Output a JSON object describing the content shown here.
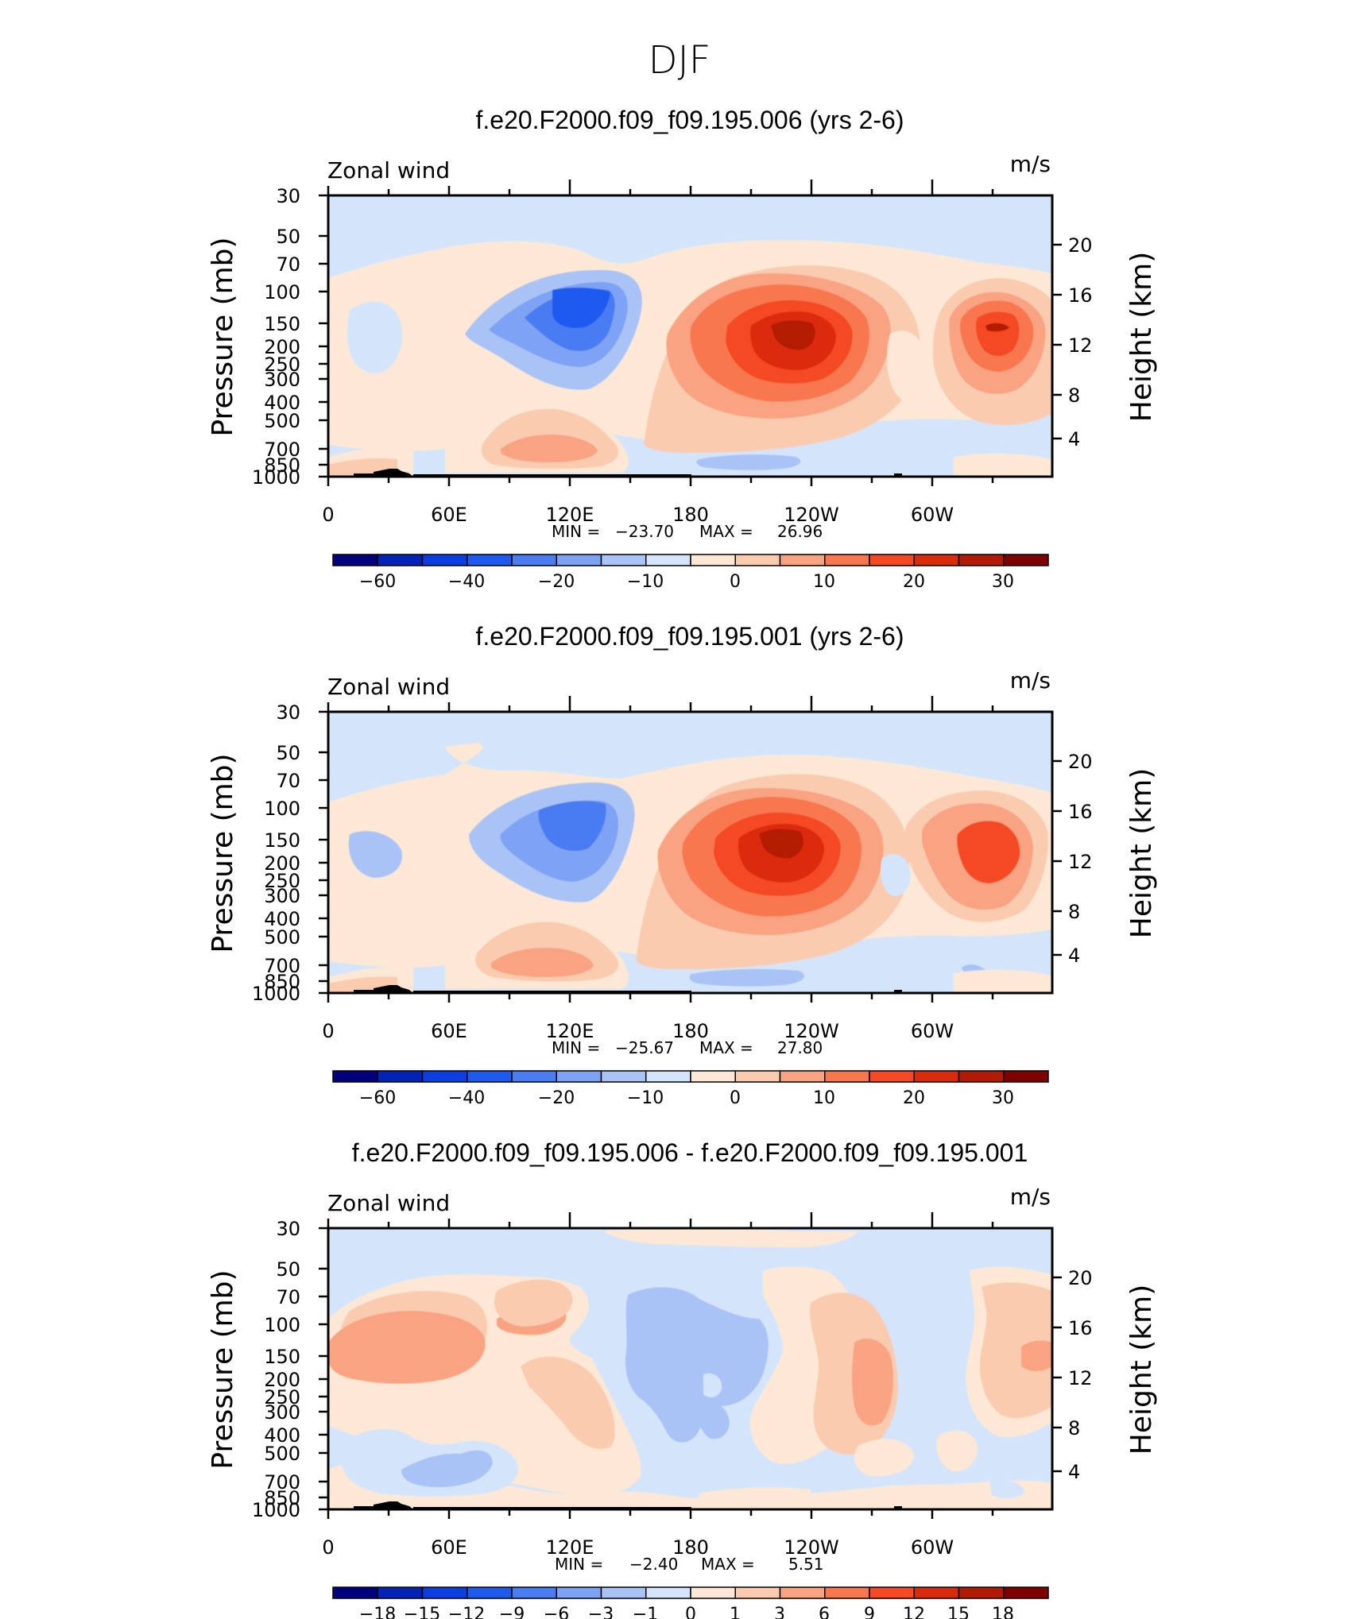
{
  "page_title": "DJF",
  "chart_data": [
    {
      "type": "heatmap",
      "title": "f.e20.F2000.f09_f09.195.006 (yrs 2-6)",
      "left_label": "Zonal wind",
      "units": "m/s",
      "ylabel": "Pressure (mb)",
      "ylabel_right": "Height (km)",
      "x_ticks": [
        "0",
        "60E",
        "120E",
        "180",
        "120W",
        "60W"
      ],
      "y_ticks": [
        "30",
        "50",
        "70",
        "100",
        "150",
        "200",
        "250",
        "300",
        "400",
        "500",
        "700",
        "850",
        "1000"
      ],
      "y_right_ticks": [
        "20",
        "16",
        "12",
        "8",
        "4"
      ],
      "min_label": "MIN =",
      "min_value": "−23.70",
      "max_label": "MAX =",
      "max_value": "26.96",
      "colorbar_labels": [
        "−60",
        "−40",
        "−20",
        "−10",
        "0",
        "10",
        "20",
        "30"
      ],
      "xlim": [
        0,
        360
      ],
      "ylim": [
        1000,
        30
      ],
      "features": [
        {
          "kind": "jet-core",
          "lon": 120,
          "p": 140,
          "value": -23.7
        },
        {
          "kind": "jet-core",
          "lon": 230,
          "p": 180,
          "value": 26.96
        },
        {
          "kind": "jet-core",
          "lon": 330,
          "p": 160,
          "value": 20
        }
      ]
    },
    {
      "type": "heatmap",
      "title": "f.e20.F2000.f09_f09.195.001 (yrs 2-6)",
      "left_label": "Zonal wind",
      "units": "m/s",
      "ylabel": "Pressure (mb)",
      "ylabel_right": "Height (km)",
      "x_ticks": [
        "0",
        "60E",
        "120E",
        "180",
        "120W",
        "60W"
      ],
      "y_ticks": [
        "30",
        "50",
        "70",
        "100",
        "150",
        "200",
        "250",
        "300",
        "400",
        "500",
        "700",
        "850",
        "1000"
      ],
      "y_right_ticks": [
        "20",
        "16",
        "12",
        "8",
        "4"
      ],
      "min_label": "MIN =",
      "min_value": "−25.67",
      "max_label": "MAX =",
      "max_value": "27.80",
      "colorbar_labels": [
        "−60",
        "−40",
        "−20",
        "−10",
        "0",
        "10",
        "20",
        "30"
      ],
      "xlim": [
        0,
        360
      ],
      "ylim": [
        1000,
        30
      ],
      "features": [
        {
          "kind": "jet-core",
          "lon": 120,
          "p": 130,
          "value": -25.67
        },
        {
          "kind": "jet-core",
          "lon": 225,
          "p": 170,
          "value": 27.8
        },
        {
          "kind": "jet-core",
          "lon": 325,
          "p": 170,
          "value": 20
        }
      ]
    },
    {
      "type": "heatmap",
      "title": "f.e20.F2000.f09_f09.195.006 - f.e20.F2000.f09_f09.195.001",
      "left_label": "Zonal wind",
      "units": "m/s",
      "ylabel": "Pressure (mb)",
      "ylabel_right": "Height (km)",
      "x_ticks": [
        "0",
        "60E",
        "120E",
        "180",
        "120W",
        "60W"
      ],
      "y_ticks": [
        "30",
        "50",
        "70",
        "100",
        "150",
        "200",
        "250",
        "300",
        "400",
        "500",
        "700",
        "850",
        "1000"
      ],
      "y_right_ticks": [
        "20",
        "16",
        "12",
        "8",
        "4"
      ],
      "min_label": "MIN =",
      "min_value": "−2.40",
      "max_label": "MAX =",
      "max_value": "5.51",
      "colorbar_labels": [
        "−18",
        "−15",
        "−12",
        "−9",
        "−6",
        "−3",
        "−1",
        "0",
        "1",
        "3",
        "6",
        "9",
        "12",
        "15",
        "18"
      ],
      "xlim": [
        0,
        360
      ],
      "ylim": [
        1000,
        30
      ],
      "features": [
        {
          "kind": "anomaly",
          "lon": 160,
          "p": 200,
          "value": -2.4
        },
        {
          "kind": "anomaly",
          "lon": 270,
          "p": 180,
          "value": 5.51
        }
      ]
    }
  ],
  "colors": {
    "colorbar": [
      "#00007f",
      "#0222b8",
      "#0a3ee3",
      "#1e5af0",
      "#4a7cf2",
      "#7ea2f4",
      "#a9c3f6",
      "#d4e5fb",
      "#fde8d5",
      "#fbcbb0",
      "#f9a382",
      "#f8774f",
      "#f44923",
      "#db2b0d",
      "#b31a04",
      "#7f0000"
    ]
  }
}
